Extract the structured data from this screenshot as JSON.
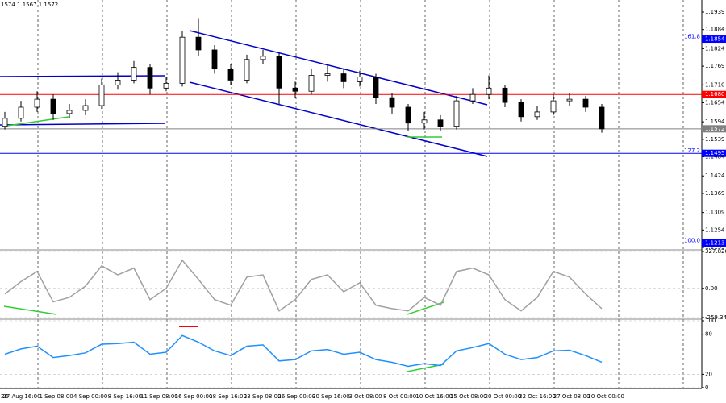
{
  "header_text": "1574 1.1567 1.1572",
  "chart_data": [
    {
      "type": "candlestick",
      "open": [
        1.158,
        1.1605,
        1.164,
        1.1665,
        1.162,
        1.163,
        1.1645,
        1.171,
        1.1725,
        1.1765,
        1.17,
        1.1715,
        1.186,
        1.182,
        1.176,
        1.1725,
        1.179,
        1.18,
        1.17,
        1.169,
        1.174,
        1.1745,
        1.172,
        1.1735,
        1.167,
        1.164,
        1.159,
        1.16,
        1.158,
        1.166,
        1.168,
        1.17,
        1.1655,
        1.161,
        1.1625,
        1.166,
        1.1665,
        1.164
      ],
      "high": [
        1.1625,
        1.166,
        1.169,
        1.168,
        1.165,
        1.1665,
        1.173,
        1.175,
        1.1785,
        1.1775,
        1.1735,
        1.188,
        1.192,
        1.1835,
        1.1775,
        1.1805,
        1.182,
        1.181,
        1.172,
        1.176,
        1.1775,
        1.176,
        1.1755,
        1.1745,
        1.1685,
        1.165,
        1.1625,
        1.1615,
        1.1675,
        1.17,
        1.174,
        1.171,
        1.1665,
        1.1645,
        1.168,
        1.1685,
        1.1675,
        1.165
      ],
      "low": [
        1.157,
        1.1595,
        1.1625,
        1.16,
        1.1605,
        1.1615,
        1.1635,
        1.1695,
        1.1715,
        1.168,
        1.169,
        1.1705,
        1.18,
        1.1745,
        1.171,
        1.1715,
        1.1775,
        1.165,
        1.167,
        1.168,
        1.172,
        1.17,
        1.1705,
        1.165,
        1.162,
        1.1565,
        1.157,
        1.1565,
        1.157,
        1.165,
        1.1665,
        1.164,
        1.1595,
        1.16,
        1.1615,
        1.1645,
        1.1625,
        1.156
      ],
      "close": [
        1.1605,
        1.164,
        1.1665,
        1.162,
        1.163,
        1.1645,
        1.171,
        1.1725,
        1.1765,
        1.17,
        1.1715,
        1.186,
        1.182,
        1.176,
        1.1725,
        1.179,
        1.18,
        1.17,
        1.169,
        1.174,
        1.1745,
        1.172,
        1.1735,
        1.167,
        1.164,
        1.159,
        1.16,
        1.158,
        1.166,
        1.168,
        1.17,
        1.1655,
        1.161,
        1.1625,
        1.166,
        1.1665,
        1.164,
        1.1572
      ],
      "ylim": [
        1.1194,
        1.1977
      ],
      "yticks": [
        1.1939,
        1.1884,
        1.1824,
        1.1769,
        {
          "value": 1.171,
          "label": "1.1710"
        },
        1.1654,
        1.1594,
        1.1539,
        1.1484,
        1.1424,
        1.1369,
        1.1309,
        1.1254,
        1.1199
      ],
      "levels": [
        {
          "value": 1.1854,
          "price_label": "1.1854",
          "label": "161.8",
          "color": "#0000ff"
        },
        {
          "value": 1.168,
          "price_label": "1.1680",
          "color": "#ff0000"
        },
        {
          "value": 1.1572,
          "price_label": "1.1572",
          "color": "#808080"
        },
        {
          "value": 1.1495,
          "price_label": "1.1495",
          "label": "127.2",
          "color": "#0000ff"
        },
        {
          "value": 1.1213,
          "price_label": "1.1213",
          "label": "100.0",
          "color": "#0000ff"
        }
      ]
    },
    {
      "type": "line",
      "values": [
        -50,
        60,
        150,
        -120,
        -80,
        20,
        200,
        120,
        180,
        -100,
        0,
        250,
        80,
        -100,
        -150,
        100,
        120,
        -200,
        -100,
        80,
        120,
        -30,
        50,
        -150,
        -180,
        -200,
        -80,
        -150,
        150,
        180,
        120,
        -100,
        -200,
        -80,
        150,
        100,
        -50,
        -180
      ],
      "color": "#a0a0a0",
      "ylim": [
        -259.342,
        327.826
      ],
      "yticks": [
        327.826,
        {
          "value": 0,
          "label": "0.00"
        },
        -259.342
      ]
    },
    {
      "type": "line",
      "values": [
        50,
        58,
        62,
        45,
        48,
        52,
        65,
        66,
        68,
        50,
        53,
        78,
        68,
        55,
        48,
        62,
        64,
        40,
        42,
        55,
        57,
        50,
        53,
        42,
        38,
        32,
        36,
        33,
        55,
        60,
        66,
        50,
        42,
        45,
        55,
        56,
        48,
        38
      ],
      "color": "#1e90ff",
      "ylim": [
        0,
        100
      ],
      "yticks": [
        100,
        80,
        20,
        0
      ]
    }
  ],
  "time_labels": [
    "20",
    "27 Aug 16:00",
    "1 Sep 08:00",
    "4 Sep 00:00",
    "8 Sep 16:00",
    "11 Sep 08:00",
    "16 Sep 00:00",
    "18 Sep 16:00",
    "23 Sep 08:00",
    "26 Sep 00:00",
    "30 Sep 16:00",
    "3 Oct 08:00",
    "8 Oct 00:00",
    "10 Oct 16:00",
    "15 Oct 08:00",
    "20 Oct 00:00",
    "22 Oct 16:00",
    "27 Oct 08:00",
    "30 Oct 00:00"
  ]
}
